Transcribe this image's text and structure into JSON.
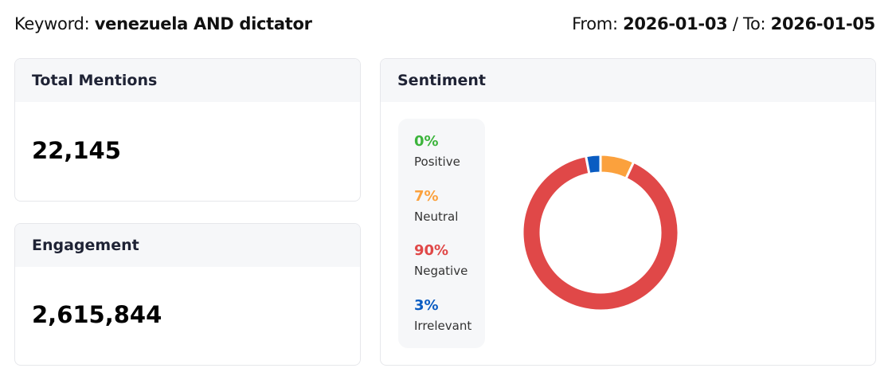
{
  "header": {
    "keyword_label": "Keyword:",
    "keyword": "venezuela AND dictator",
    "from_label": "From:",
    "from": "2026-01-03",
    "sep": "/ To:",
    "to": "2026-01-05"
  },
  "total_mentions": {
    "title": "Total Mentions",
    "value": "22,145"
  },
  "engagement": {
    "title": "Engagement",
    "value": "2,615,844"
  },
  "sentiment": {
    "title": "Sentiment",
    "items": [
      {
        "pct": "0%",
        "label": "Positive",
        "color": "#3cb43c"
      },
      {
        "pct": "7%",
        "label": "Neutral",
        "color": "#fba13d"
      },
      {
        "pct": "90%",
        "label": "Negative",
        "color": "#e04848"
      },
      {
        "pct": "3%",
        "label": "Irrelevant",
        "color": "#0a5cc2"
      }
    ]
  },
  "chart_data": {
    "type": "pie",
    "donut": true,
    "categories": [
      "Positive",
      "Neutral",
      "Negative",
      "Irrelevant"
    ],
    "values": [
      0,
      7,
      90,
      3
    ],
    "colors": [
      "#3cb43c",
      "#fba13d",
      "#e04848",
      "#0a5cc2"
    ]
  }
}
